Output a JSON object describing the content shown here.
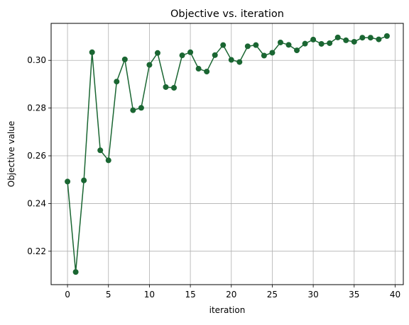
{
  "chart_data": {
    "type": "line",
    "title": "Objective vs. iteration",
    "xlabel": "iteration",
    "ylabel": "Objective value",
    "xlim": [
      -2,
      41
    ],
    "ylim": [
      0.206,
      0.3155
    ],
    "xticks": [
      0,
      5,
      10,
      15,
      20,
      25,
      30,
      35,
      40
    ],
    "yticks": [
      0.22,
      0.24,
      0.26,
      0.28,
      0.3
    ],
    "xtick_labels": [
      "0",
      "5",
      "10",
      "15",
      "20",
      "25",
      "30",
      "35",
      "40"
    ],
    "ytick_labels": [
      "0.22",
      "0.24",
      "0.26",
      "0.28",
      "0.30"
    ],
    "grid": true,
    "legend": "none",
    "color": "#1a6632",
    "marker": "circle",
    "series": [
      {
        "x": [
          0,
          1,
          2,
          3,
          4,
          5,
          6,
          7,
          8,
          9,
          10,
          11,
          12,
          13,
          14,
          15,
          16,
          17,
          18,
          19,
          20,
          21,
          22,
          23,
          24,
          25,
          26,
          27,
          28,
          29,
          30,
          31,
          32,
          33,
          34,
          35,
          36,
          37,
          38,
          39
        ],
        "values": [
          0.2492,
          0.2113,
          0.2497,
          0.3034,
          0.2623,
          0.2581,
          0.2911,
          0.3004,
          0.2791,
          0.2801,
          0.2981,
          0.3031,
          0.2888,
          0.2885,
          0.3021,
          0.3034,
          0.2965,
          0.2953,
          0.3022,
          0.3064,
          0.3002,
          0.2993,
          0.3059,
          0.3064,
          0.302,
          0.3032,
          0.3075,
          0.3065,
          0.3042,
          0.307,
          0.3087,
          0.3069,
          0.3072,
          0.3096,
          0.3084,
          0.3078,
          0.3095,
          0.3095,
          0.3088,
          0.3102
        ]
      }
    ]
  }
}
